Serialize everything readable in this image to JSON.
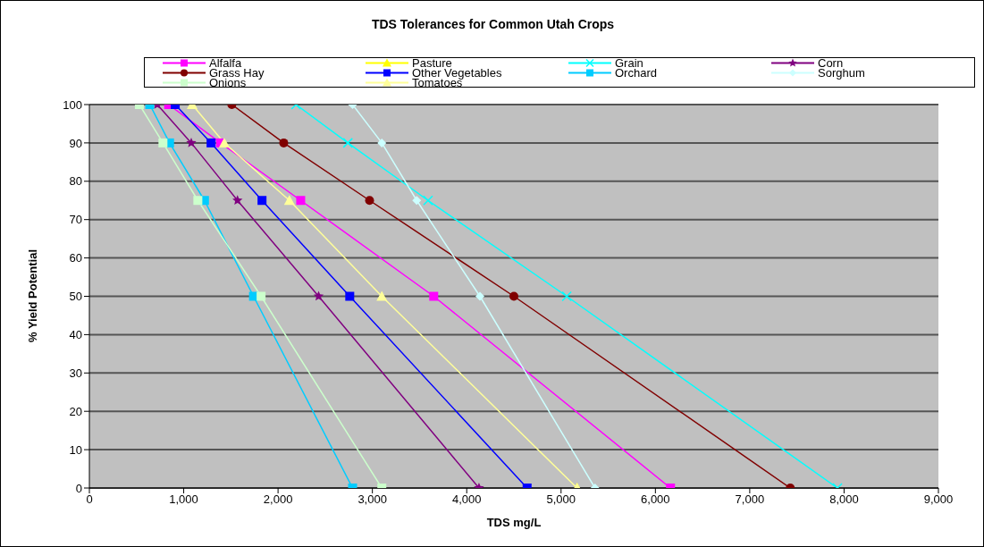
{
  "chart_data": {
    "type": "line",
    "title": "TDS Tolerances for Common Utah Crops",
    "xlabel": "TDS mg/L",
    "ylabel": "% Yield Potential",
    "xlim": [
      0,
      9000
    ],
    "xticks": [
      0,
      {
        "value": 1000,
        "label": "1,000"
      },
      {
        "value": 2000,
        "label": "2,000"
      },
      {
        "value": 3000,
        "label": "3,000"
      },
      {
        "value": 4000,
        "label": "4,000"
      },
      {
        "value": 5000,
        "label": "5,000"
      },
      {
        "value": 6000,
        "label": "6,000"
      },
      {
        "value": 7000,
        "label": "7,000"
      },
      {
        "value": 8000,
        "label": "8,000"
      },
      {
        "value": 9000,
        "label": "9,000"
      }
    ],
    "ylim": [
      0,
      100
    ],
    "yticks": [
      0,
      10,
      20,
      30,
      40,
      50,
      60,
      70,
      80,
      90,
      100
    ],
    "grid": "y",
    "legend": "top",
    "series": [
      {
        "name": "Alfalfa",
        "color": "#ff00ff",
        "marker": "square",
        "x": [
          840,
          1390,
          2240,
          3650,
          6160
        ],
        "values": [
          100,
          90,
          75,
          50,
          0
        ]
      },
      {
        "name": "Pasture",
        "color": "#ffff00",
        "marker": "triangle",
        "x": [
          null,
          null,
          null,
          null,
          5170
        ],
        "values": [
          null,
          null,
          null,
          null,
          0
        ]
      },
      {
        "name": "Grain",
        "color": "#00ffff",
        "marker": "cross",
        "x": [
          2190,
          2740,
          3590,
          5060,
          7930
        ],
        "values": [
          100,
          90,
          75,
          50,
          0
        ]
      },
      {
        "name": "Corn",
        "color": "#800080",
        "marker": "star",
        "x": [
          720,
          1080,
          1570,
          2430,
          4130
        ],
        "values": [
          100,
          90,
          75,
          50,
          0
        ]
      },
      {
        "name": "Grass Hay",
        "color": "#800000",
        "marker": "circle",
        "x": [
          1510,
          2060,
          2970,
          4500,
          7430
        ],
        "values": [
          100,
          90,
          75,
          50,
          0
        ]
      },
      {
        "name": "Other Vegetables",
        "color": "#0000ff",
        "marker": "square",
        "x": [
          910,
          1290,
          1830,
          2760,
          4640
        ],
        "values": [
          100,
          90,
          75,
          50,
          0
        ]
      },
      {
        "name": "Orchard",
        "color": "#00ccff",
        "marker": "square",
        "x": [
          640,
          850,
          1220,
          1740,
          2790
        ],
        "values": [
          100,
          90,
          75,
          50,
          0
        ]
      },
      {
        "name": "Sorghum",
        "color": "#ccffff",
        "marker": "diamond",
        "x": [
          2790,
          3100,
          3470,
          4140,
          5360
        ],
        "values": [
          100,
          90,
          75,
          50,
          0
        ]
      },
      {
        "name": "Onions",
        "color": "#ccffcc",
        "marker": "square",
        "x": [
          530,
          780,
          1150,
          1820,
          3100
        ],
        "values": [
          100,
          90,
          75,
          50,
          0
        ]
      },
      {
        "name": "Tomatoes",
        "color": "#ffff99",
        "marker": "triangle",
        "x": [
          1090,
          1430,
          2120,
          3100,
          5170
        ],
        "values": [
          100,
          90,
          75,
          50,
          0
        ]
      }
    ]
  }
}
